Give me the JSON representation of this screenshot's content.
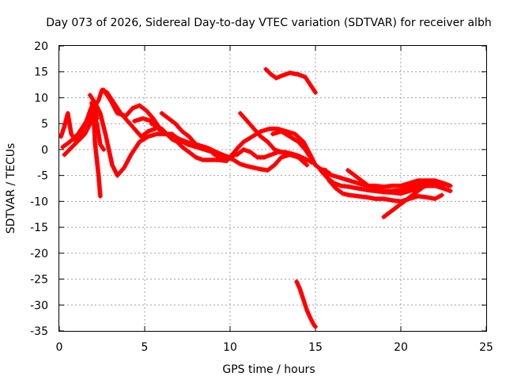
{
  "chart_data": {
    "type": "scatter",
    "title": "Day 073 of 2026, Sidereal Day-to-day VTEC variation (SDTVAR) for receiver albh",
    "xlabel": "GPS time / hours",
    "ylabel": "SDTVAR / TECUs",
    "xlim": [
      0,
      25
    ],
    "ylim": [
      -35,
      20
    ],
    "xticks": [
      "0",
      "5",
      "10",
      "15",
      "20",
      "25"
    ],
    "yticks": [
      "20",
      "15",
      "10",
      "5",
      "0",
      "-5",
      "-10",
      "-15",
      "-20",
      "-25",
      "-30",
      "-35"
    ],
    "grid": true,
    "marker": "plus",
    "color": "#ff0000",
    "series": [
      {
        "name": "arc-1",
        "points": [
          [
            0.1,
            2.5
          ],
          [
            0.3,
            4.5
          ],
          [
            0.5,
            7
          ],
          [
            0.7,
            3
          ],
          [
            1.0,
            1.5
          ],
          [
            1.3,
            3.5
          ],
          [
            1.6,
            5.5
          ],
          [
            1.8,
            7.5
          ],
          [
            2.0,
            9
          ],
          [
            2.2,
            6
          ]
        ]
      },
      {
        "name": "arc-2",
        "points": [
          [
            0.2,
            0.5
          ],
          [
            0.5,
            1.2
          ],
          [
            0.8,
            2
          ],
          [
            1.1,
            3
          ],
          [
            1.5,
            5
          ],
          [
            1.9,
            7.5
          ],
          [
            2.3,
            9.5
          ],
          [
            2.5,
            11.5
          ],
          [
            2.8,
            11
          ],
          [
            3.2,
            9
          ],
          [
            3.6,
            7
          ],
          [
            4.0,
            5.5
          ],
          [
            4.4,
            4
          ],
          [
            4.8,
            2.5
          ],
          [
            5.2,
            3.5
          ],
          [
            5.6,
            4
          ]
        ]
      },
      {
        "name": "arc-3",
        "points": [
          [
            0.3,
            -1
          ],
          [
            0.6,
            0
          ],
          [
            0.9,
            1
          ],
          [
            1.2,
            2
          ],
          [
            1.5,
            3
          ],
          [
            1.8,
            5
          ],
          [
            2.0,
            7
          ],
          [
            2.2,
            5
          ],
          [
            2.4,
            1
          ],
          [
            2.6,
            0
          ]
        ]
      },
      {
        "name": "arc-4",
        "points": [
          [
            1.9,
            9
          ],
          [
            2.0,
            7
          ],
          [
            2.05,
            4
          ],
          [
            2.1,
            1
          ],
          [
            2.2,
            -2
          ],
          [
            2.3,
            -5
          ],
          [
            2.35,
            -7
          ],
          [
            2.4,
            -9
          ]
        ]
      },
      {
        "name": "arc-5",
        "points": [
          [
            1.8,
            10.5
          ],
          [
            2.1,
            9
          ],
          [
            2.4,
            7
          ],
          [
            2.7,
            3
          ],
          [
            2.9,
            0
          ],
          [
            3.1,
            -3
          ],
          [
            3.4,
            -5
          ],
          [
            3.8,
            -3.5
          ],
          [
            4.2,
            -1
          ],
          [
            4.7,
            1.5
          ],
          [
            5.2,
            2.5
          ],
          [
            5.7,
            3
          ],
          [
            6.2,
            3
          ],
          [
            6.7,
            2.5
          ],
          [
            7.2,
            1.5
          ],
          [
            7.7,
            1
          ],
          [
            8.2,
            0.8
          ],
          [
            8.7,
            0.3
          ],
          [
            9.2,
            -0.5
          ],
          [
            9.7,
            -1.2
          ],
          [
            10.2,
            -2
          ],
          [
            10.6,
            -2.8
          ],
          [
            11.0,
            -3.2
          ],
          [
            11.4,
            -3.5
          ],
          [
            11.8,
            -3.8
          ],
          [
            12.2,
            -4
          ],
          [
            12.6,
            -3
          ],
          [
            13.0,
            -1.5
          ],
          [
            13.5,
            -1
          ]
        ]
      },
      {
        "name": "arc-6",
        "points": [
          [
            2.6,
            11.5
          ],
          [
            3.0,
            9.5
          ],
          [
            3.4,
            7
          ],
          [
            3.9,
            6.5
          ],
          [
            4.3,
            8
          ],
          [
            4.7,
            8.5
          ],
          [
            5.1,
            7.5
          ],
          [
            5.5,
            6
          ],
          [
            5.9,
            4
          ],
          [
            6.3,
            3
          ],
          [
            6.7,
            2.5
          ],
          [
            7.2,
            1.8
          ],
          [
            7.7,
            1.2
          ],
          [
            8.2,
            0.8
          ],
          [
            8.7,
            0.2
          ],
          [
            9.1,
            -1
          ],
          [
            9.5,
            -1.5
          ],
          [
            9.9,
            -1.8
          ],
          [
            10.3,
            -1
          ]
        ]
      },
      {
        "name": "arc-7",
        "points": [
          [
            4.4,
            5.5
          ],
          [
            4.9,
            6
          ],
          [
            5.4,
            5.5
          ],
          [
            5.8,
            4
          ],
          [
            6.2,
            3
          ],
          [
            6.6,
            3
          ],
          [
            7.0,
            2
          ],
          [
            7.5,
            1
          ],
          [
            8.0,
            0.5
          ],
          [
            8.5,
            0
          ],
          [
            9.0,
            -0.5
          ],
          [
            9.5,
            -1
          ],
          [
            10.0,
            -1.5
          ],
          [
            10.5,
            0.5
          ],
          [
            10.8,
            1.5
          ],
          [
            11.3,
            2.5
          ],
          [
            11.8,
            3.5
          ],
          [
            12.3,
            4
          ],
          [
            12.8,
            4
          ],
          [
            13.3,
            3.5
          ],
          [
            13.8,
            3
          ],
          [
            14.3,
            1.5
          ],
          [
            14.7,
            -1
          ],
          [
            15.0,
            -3
          ],
          [
            15.3,
            -3.8
          ],
          [
            15.6,
            -4
          ]
        ]
      },
      {
        "name": "arc-8",
        "points": [
          [
            5.4,
            5
          ],
          [
            5.7,
            4.5
          ],
          [
            6.0,
            4
          ],
          [
            6.3,
            3
          ],
          [
            6.6,
            2
          ],
          [
            6.9,
            1.5
          ],
          [
            7.2,
            0.5
          ],
          [
            7.6,
            -0.5
          ],
          [
            8.0,
            -1.5
          ],
          [
            8.4,
            -2
          ],
          [
            8.9,
            -2
          ],
          [
            9.3,
            -2
          ],
          [
            9.8,
            -2.2
          ]
        ]
      },
      {
        "name": "arc-9",
        "points": [
          [
            6.0,
            7
          ],
          [
            6.4,
            6
          ],
          [
            6.8,
            5
          ],
          [
            7.2,
            3.5
          ],
          [
            7.6,
            2.5
          ],
          [
            8.0,
            1
          ],
          [
            8.4,
            0.5
          ],
          [
            8.8,
            0
          ],
          [
            9.2,
            -1
          ],
          [
            9.6,
            -2
          ]
        ]
      },
      {
        "name": "arc-10",
        "points": [
          [
            10.6,
            7
          ],
          [
            11.0,
            5.5
          ],
          [
            11.4,
            4
          ],
          [
            11.8,
            2.5
          ],
          [
            12.2,
            1.5
          ],
          [
            12.6,
            0
          ],
          [
            13.0,
            -0.5
          ],
          [
            13.5,
            -1
          ],
          [
            14.0,
            -1.5
          ],
          [
            14.5,
            -3
          ]
        ]
      },
      {
        "name": "arc-11",
        "points": [
          [
            12.5,
            3
          ],
          [
            13.0,
            3.5
          ],
          [
            13.5,
            2.5
          ],
          [
            14.0,
            1.5
          ],
          [
            14.4,
            0
          ],
          [
            14.7,
            -1.5
          ],
          [
            15.0,
            -3
          ],
          [
            15.4,
            -4
          ],
          [
            15.8,
            -4.5
          ]
        ]
      },
      {
        "name": "arc-12",
        "points": [
          [
            10.4,
            -1
          ],
          [
            10.8,
            0
          ],
          [
            11.2,
            -0.5
          ],
          [
            11.6,
            -1.5
          ],
          [
            12.0,
            -1.5
          ],
          [
            12.4,
            -1
          ],
          [
            12.8,
            -0.5
          ],
          [
            13.2,
            -0.5
          ],
          [
            13.6,
            -0.8
          ],
          [
            14.0,
            -1.2
          ],
          [
            14.4,
            -1.8
          ],
          [
            14.8,
            -2.5
          ]
        ]
      },
      {
        "name": "arc-13",
        "points": [
          [
            12.1,
            15.5
          ],
          [
            12.4,
            14.5
          ],
          [
            12.7,
            13.8
          ],
          [
            13.0,
            14.2
          ],
          [
            13.5,
            14.8
          ],
          [
            14.0,
            14.5
          ],
          [
            14.4,
            14
          ],
          [
            14.8,
            12
          ],
          [
            15.0,
            11
          ]
        ]
      },
      {
        "name": "arc-14",
        "points": [
          [
            13.9,
            -25.5
          ],
          [
            14.1,
            -27
          ],
          [
            14.3,
            -29
          ],
          [
            14.5,
            -31
          ],
          [
            14.7,
            -32.5
          ],
          [
            14.9,
            -33.8
          ],
          [
            15.0,
            -34.2
          ]
        ]
      },
      {
        "name": "arc-15",
        "points": [
          [
            15.3,
            -4
          ],
          [
            15.7,
            -5.5
          ],
          [
            16.1,
            -6.5
          ],
          [
            16.5,
            -7
          ],
          [
            17.0,
            -7.2
          ],
          [
            17.5,
            -7.5
          ],
          [
            18.0,
            -7.8
          ],
          [
            18.5,
            -8
          ],
          [
            19.0,
            -8.2
          ],
          [
            19.5,
            -8.3
          ],
          [
            20.0,
            -8.5
          ],
          [
            20.5,
            -8
          ],
          [
            21.0,
            -7.5
          ],
          [
            21.5,
            -7
          ],
          [
            22.0,
            -7
          ],
          [
            22.5,
            -7.5
          ],
          [
            22.9,
            -8
          ]
        ]
      },
      {
        "name": "arc-16",
        "points": [
          [
            15.5,
            -4.5
          ],
          [
            16.0,
            -5
          ],
          [
            16.5,
            -5.5
          ],
          [
            17.0,
            -6
          ],
          [
            17.5,
            -6.5
          ],
          [
            18.0,
            -7
          ],
          [
            18.5,
            -7
          ],
          [
            19.0,
            -7.2
          ],
          [
            19.5,
            -7
          ],
          [
            20.0,
            -7
          ],
          [
            20.5,
            -6.5
          ],
          [
            21.0,
            -6
          ],
          [
            21.5,
            -6
          ],
          [
            22.0,
            -6
          ],
          [
            22.5,
            -6.5
          ],
          [
            22.9,
            -7
          ]
        ]
      },
      {
        "name": "arc-17",
        "points": [
          [
            15.8,
            -6
          ],
          [
            16.2,
            -7.5
          ],
          [
            16.6,
            -8.5
          ],
          [
            17.0,
            -8.8
          ],
          [
            17.5,
            -9
          ],
          [
            18.0,
            -9.2
          ],
          [
            18.5,
            -9.5
          ],
          [
            19.0,
            -9.5
          ],
          [
            19.5,
            -9.8
          ],
          [
            20.0,
            -10
          ],
          [
            20.5,
            -9.5
          ],
          [
            21.0,
            -9
          ],
          [
            21.5,
            -9.2
          ],
          [
            22.0,
            -9.5
          ],
          [
            22.4,
            -8.8
          ]
        ]
      },
      {
        "name": "arc-18",
        "points": [
          [
            16.9,
            -4
          ],
          [
            17.3,
            -5
          ],
          [
            17.7,
            -6
          ],
          [
            18.1,
            -7
          ],
          [
            18.5,
            -7.5
          ],
          [
            19.0,
            -8
          ],
          [
            19.5,
            -8
          ],
          [
            20.0,
            -7.8
          ],
          [
            20.5,
            -7.3
          ],
          [
            21.0,
            -6.8
          ],
          [
            21.5,
            -6.5
          ],
          [
            22.0,
            -6.5
          ],
          [
            22.5,
            -7
          ]
        ]
      },
      {
        "name": "arc-19",
        "points": [
          [
            19.0,
            -13
          ],
          [
            19.4,
            -12
          ],
          [
            19.8,
            -11
          ],
          [
            20.2,
            -10
          ],
          [
            20.6,
            -9
          ],
          [
            21.0,
            -8
          ],
          [
            21.4,
            -7
          ],
          [
            21.8,
            -6.5
          ]
        ]
      },
      {
        "name": "arc-20",
        "points": [
          [
            20.0,
            -7
          ],
          [
            20.5,
            -7
          ],
          [
            21.0,
            -7
          ],
          [
            21.5,
            -7
          ],
          [
            22.0,
            -6.8
          ],
          [
            22.5,
            -6.5
          ],
          [
            22.8,
            -7
          ]
        ]
      }
    ]
  }
}
